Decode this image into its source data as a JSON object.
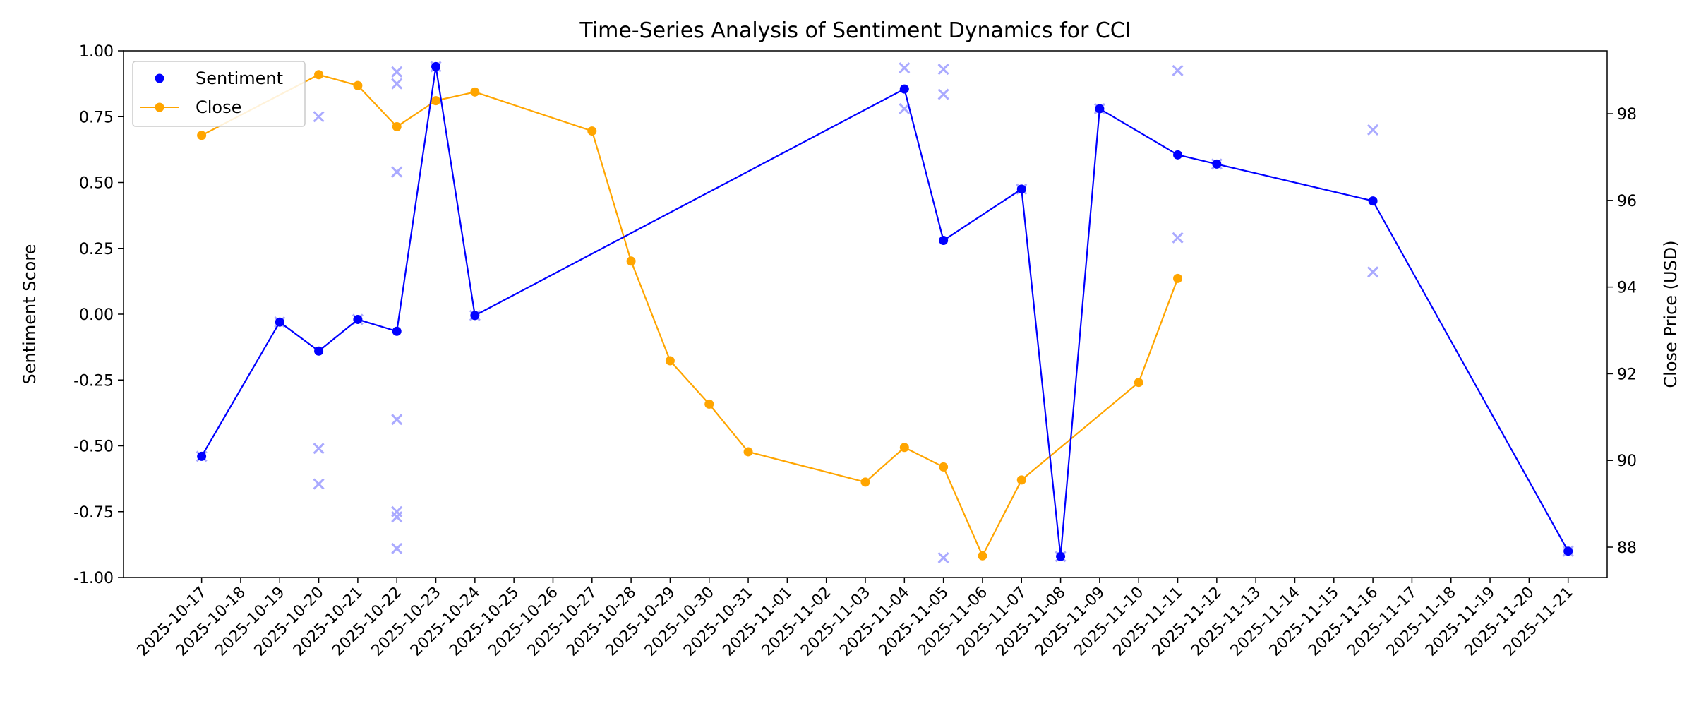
{
  "chart_data": {
    "type": "line",
    "title": "Time-Series Analysis of Sentiment Dynamics for CCI",
    "ylabel_left": "Sentiment Score",
    "ylabel_right": "Close Price (USD)",
    "ylim_left": [
      -1.0,
      1.0
    ],
    "yticks_left": [
      "-1.00",
      "-0.75",
      "-0.50",
      "-0.25",
      "0.00",
      "0.25",
      "0.50",
      "0.75",
      "1.00"
    ],
    "ylim_right": [
      87.3,
      99.45
    ],
    "yticks_right": [
      "88",
      "90",
      "92",
      "94",
      "96",
      "98"
    ],
    "xlim": [
      "2025-10-15",
      "2025-11-22"
    ],
    "xticks": [
      "2025-10-17",
      "2025-10-18",
      "2025-10-19",
      "2025-10-20",
      "2025-10-21",
      "2025-10-22",
      "2025-10-23",
      "2025-10-24",
      "2025-10-25",
      "2025-10-26",
      "2025-10-27",
      "2025-10-28",
      "2025-10-29",
      "2025-10-30",
      "2025-10-31",
      "2025-11-01",
      "2025-11-02",
      "2025-11-03",
      "2025-11-04",
      "2025-11-05",
      "2025-11-06",
      "2025-11-07",
      "2025-11-08",
      "2025-11-09",
      "2025-11-10",
      "2025-11-11",
      "2025-11-12",
      "2025-11-13",
      "2025-11-14",
      "2025-11-15",
      "2025-11-16",
      "2025-11-17",
      "2025-11-18",
      "2025-11-19",
      "2025-11-20",
      "2025-11-21"
    ],
    "grid": false,
    "legend_position": "top-left",
    "series": [
      {
        "name": "Sentiment",
        "axis": "left",
        "color": "#0000ff",
        "points": [
          {
            "x": "2025-10-17",
            "y": -0.54
          },
          {
            "x": "2025-10-19",
            "y": -0.03
          },
          {
            "x": "2025-10-20",
            "y": -0.14
          },
          {
            "x": "2025-10-21",
            "y": -0.02
          },
          {
            "x": "2025-10-22",
            "y": -0.065
          },
          {
            "x": "2025-10-23",
            "y": 0.94
          },
          {
            "x": "2025-10-24",
            "y": -0.005
          },
          {
            "x": "2025-11-04",
            "y": 0.855
          },
          {
            "x": "2025-11-05",
            "y": 0.28
          },
          {
            "x": "2025-11-07",
            "y": 0.475
          },
          {
            "x": "2025-11-08",
            "y": -0.92
          },
          {
            "x": "2025-11-09",
            "y": 0.78
          },
          {
            "x": "2025-11-11",
            "y": 0.605
          },
          {
            "x": "2025-11-12",
            "y": 0.57
          },
          {
            "x": "2025-11-16",
            "y": 0.43
          },
          {
            "x": "2025-11-21",
            "y": -0.9
          }
        ]
      },
      {
        "name": "Close",
        "axis": "right",
        "color": "#ffa500",
        "points": [
          {
            "x": "2025-10-17",
            "y": 97.5
          },
          {
            "x": "2025-10-20",
            "y": 98.9
          },
          {
            "x": "2025-10-21",
            "y": 98.65
          },
          {
            "x": "2025-10-22",
            "y": 97.7
          },
          {
            "x": "2025-10-23",
            "y": 98.3
          },
          {
            "x": "2025-10-24",
            "y": 98.5
          },
          {
            "x": "2025-10-27",
            "y": 97.6
          },
          {
            "x": "2025-10-28",
            "y": 94.6
          },
          {
            "x": "2025-10-29",
            "y": 92.3
          },
          {
            "x": "2025-10-30",
            "y": 91.3
          },
          {
            "x": "2025-10-31",
            "y": 90.2
          },
          {
            "x": "2025-11-03",
            "y": 89.5
          },
          {
            "x": "2025-11-04",
            "y": 90.3
          },
          {
            "x": "2025-11-05",
            "y": 89.85
          },
          {
            "x": "2025-11-06",
            "y": 87.8
          },
          {
            "x": "2025-11-07",
            "y": 89.55
          },
          {
            "x": "2025-11-10",
            "y": 91.8
          },
          {
            "x": "2025-11-11",
            "y": 94.2
          }
        ]
      }
    ],
    "raw_sentiment": {
      "marker": "x",
      "color": "#aaaaff",
      "points": [
        {
          "x": "2025-10-17",
          "y": -0.54
        },
        {
          "x": "2025-10-19",
          "y": -0.03
        },
        {
          "x": "2025-10-20",
          "y": 0.75
        },
        {
          "x": "2025-10-20",
          "y": -0.51
        },
        {
          "x": "2025-10-20",
          "y": -0.645
        },
        {
          "x": "2025-10-21",
          "y": -0.02
        },
        {
          "x": "2025-10-22",
          "y": 0.92
        },
        {
          "x": "2025-10-22",
          "y": 0.875
        },
        {
          "x": "2025-10-22",
          "y": 0.54
        },
        {
          "x": "2025-10-22",
          "y": -0.4
        },
        {
          "x": "2025-10-22",
          "y": -0.75
        },
        {
          "x": "2025-10-22",
          "y": -0.77
        },
        {
          "x": "2025-10-22",
          "y": -0.89
        },
        {
          "x": "2025-10-23",
          "y": 0.94
        },
        {
          "x": "2025-10-24",
          "y": -0.005
        },
        {
          "x": "2025-11-04",
          "y": 0.935
        },
        {
          "x": "2025-11-04",
          "y": 0.78
        },
        {
          "x": "2025-11-05",
          "y": 0.93
        },
        {
          "x": "2025-11-05",
          "y": 0.835
        },
        {
          "x": "2025-11-05",
          "y": -0.925
        },
        {
          "x": "2025-11-07",
          "y": 0.475
        },
        {
          "x": "2025-11-08",
          "y": -0.92
        },
        {
          "x": "2025-11-09",
          "y": 0.78
        },
        {
          "x": "2025-11-11",
          "y": 0.925
        },
        {
          "x": "2025-11-11",
          "y": 0.29
        },
        {
          "x": "2025-11-12",
          "y": 0.57
        },
        {
          "x": "2025-11-16",
          "y": 0.7
        },
        {
          "x": "2025-11-16",
          "y": 0.16
        },
        {
          "x": "2025-11-21",
          "y": -0.9
        }
      ]
    }
  }
}
